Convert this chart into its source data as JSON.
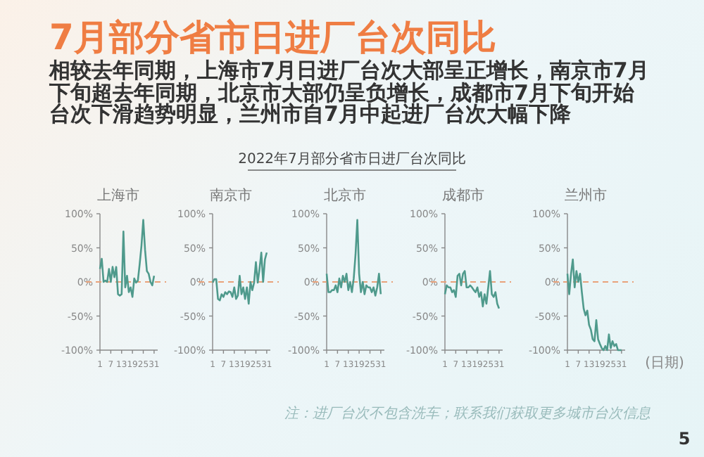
{
  "chart_data": [
    {
      "type": "line",
      "title": "上海市",
      "annotations": [
        "7月部分省市日进厂台次同比",
        "相较去年同期，上海市7月日进厂台次大部呈正增长，南京市7月下旬超去年同期，北京市大部仍呈负增长，成都市7月下旬开始台次下滑趋势明显，兰州市自7月中起进厂台次大幅下降",
        "2022年7月部分省市日进厂台次同比",
        "注：进厂台次不包含洗车；联系我们获取更多城市台次信息",
        "5"
      ],
      "x": [
        1,
        2,
        3,
        4,
        5,
        6,
        7,
        8,
        9,
        10,
        11,
        12,
        13,
        14,
        15,
        16,
        17,
        18,
        19,
        20,
        21,
        22,
        23,
        24,
        25,
        26,
        27,
        28,
        29,
        30,
        31
      ],
      "xlim": [
        1,
        33
      ],
      "xticks": [
        1,
        7,
        13,
        19,
        25,
        31
      ],
      "ylim": [
        -100,
        100
      ],
      "yticks": [
        {
          "value": -100,
          "label": "-100%"
        },
        {
          "value": -50,
          "label": "-50%"
        },
        {
          "value": 0,
          "label": "0%"
        },
        {
          "value": 50,
          "label": "50%"
        },
        {
          "value": 100,
          "label": "100%"
        }
      ],
      "ref_lines": [
        {
          "axis": "y",
          "value": 0,
          "color": "#e9a27a",
          "line_style": "dashed"
        }
      ],
      "series": [
        {
          "color": "#4f9a8c",
          "values": [
            19,
            34,
            0,
            2,
            0,
            19,
            0,
            22,
            7,
            22,
            -18,
            -20,
            -18,
            74,
            -8,
            9,
            -15,
            -8,
            -22,
            5,
            -1,
            2,
            26,
            53,
            91,
            47,
            16,
            12,
            0,
            -5,
            9
          ]
        }
      ]
    },
    {
      "type": "line",
      "title": "南京市",
      "x": [
        1,
        2,
        3,
        4,
        5,
        6,
        7,
        8,
        9,
        10,
        11,
        12,
        13,
        14,
        15,
        16,
        17,
        18,
        19,
        20,
        21,
        22,
        23,
        24,
        25,
        26,
        27,
        28,
        29,
        30,
        31
      ],
      "xlim": [
        1,
        33
      ],
      "xticks": [
        1,
        7,
        13,
        19,
        25,
        31
      ],
      "ylim": [
        -100,
        100
      ],
      "yticks": [
        {
          "value": -100,
          "label": "-100%"
        },
        {
          "value": -50,
          "label": "-50%"
        },
        {
          "value": 0,
          "label": "0%"
        },
        {
          "value": 50,
          "label": "50%"
        },
        {
          "value": 100,
          "label": "100%"
        }
      ],
      "ref_lines": [
        {
          "axis": "y",
          "value": 0,
          "color": "#e9a27a",
          "line_style": "dashed"
        }
      ],
      "series": [
        {
          "color": "#4f9a8c",
          "values": [
            -1,
            4,
            4,
            -25,
            -27,
            -18,
            -22,
            -15,
            -18,
            -14,
            -15,
            -22,
            -8,
            -25,
            -20,
            9,
            -18,
            -8,
            -25,
            -8,
            -32,
            0,
            -12,
            -1,
            29,
            -1,
            19,
            43,
            0,
            33,
            43
          ]
        }
      ]
    },
    {
      "type": "line",
      "title": "北京市",
      "x": [
        1,
        2,
        3,
        4,
        5,
        6,
        7,
        8,
        9,
        10,
        11,
        12,
        13,
        14,
        15,
        16,
        17,
        18,
        19,
        20,
        21,
        22,
        23,
        24,
        25,
        26,
        27,
        28,
        29,
        30,
        31
      ],
      "xlim": [
        1,
        33
      ],
      "xticks": [
        1,
        7,
        13,
        19,
        25,
        31
      ],
      "ylim": [
        -100,
        100
      ],
      "yticks": [
        {
          "value": -100,
          "label": "-100%"
        },
        {
          "value": -50,
          "label": "-50%"
        },
        {
          "value": 0,
          "label": "0%"
        },
        {
          "value": 50,
          "label": "50%"
        },
        {
          "value": 100,
          "label": "100%"
        }
      ],
      "ref_lines": [
        {
          "axis": "y",
          "value": 0,
          "color": "#e9a27a",
          "line_style": "dashed"
        }
      ],
      "series": [
        {
          "color": "#4f9a8c",
          "values": [
            12,
            -15,
            -15,
            -12,
            -12,
            -5,
            -15,
            5,
            -8,
            9,
            0,
            12,
            -12,
            0,
            -15,
            5,
            40,
            91,
            12,
            -15,
            0,
            -18,
            -5,
            -8,
            -8,
            -15,
            -8,
            -20,
            -8,
            12,
            -18
          ]
        }
      ]
    },
    {
      "type": "line",
      "title": "成都市",
      "x": [
        1,
        2,
        3,
        4,
        5,
        6,
        7,
        8,
        9,
        10,
        11,
        12,
        13,
        14,
        15,
        16,
        17,
        18,
        19,
        20,
        21,
        22,
        23,
        24,
        25,
        26,
        27,
        28,
        29,
        30,
        31
      ],
      "xlim": [
        1,
        33
      ],
      "xticks": [
        1,
        7,
        13,
        19,
        25,
        31
      ],
      "ylim": [
        -100,
        100
      ],
      "yticks": [
        {
          "value": -100,
          "label": "-100%"
        },
        {
          "value": -50,
          "label": "-50%"
        },
        {
          "value": 0,
          "label": "0%"
        },
        {
          "value": 50,
          "label": "50%"
        },
        {
          "value": 100,
          "label": "100%"
        }
      ],
      "ref_lines": [
        {
          "axis": "y",
          "value": 0,
          "color": "#e9a27a",
          "line_style": "dashed"
        }
      ],
      "series": [
        {
          "color": "#4f9a8c",
          "values": [
            -18,
            -5,
            -8,
            -8,
            -15,
            -12,
            -22,
            9,
            12,
            -5,
            12,
            16,
            -8,
            -8,
            -5,
            -8,
            -12,
            -15,
            -8,
            -22,
            -15,
            -36,
            -18,
            -32,
            -8,
            16,
            -18,
            -22,
            -15,
            -32,
            -39
          ]
        }
      ]
    },
    {
      "type": "line",
      "title": "兰州市",
      "xlabel": "(日期)",
      "x": [
        1,
        2,
        3,
        4,
        5,
        6,
        7,
        8,
        9,
        10,
        11,
        12,
        13,
        14,
        15,
        16,
        17,
        18,
        19,
        20,
        21,
        22,
        23,
        24,
        25,
        26,
        27,
        28,
        29,
        30,
        31
      ],
      "xlim": [
        1,
        33
      ],
      "xticks": [
        1,
        7,
        13,
        19,
        25,
        31
      ],
      "ylim": [
        -100,
        100
      ],
      "yticks": [
        {
          "value": -100,
          "label": "-100%"
        },
        {
          "value": -50,
          "label": "-50%"
        },
        {
          "value": 0,
          "label": "0%"
        },
        {
          "value": 50,
          "label": "50%"
        },
        {
          "value": 100,
          "label": "100%"
        }
      ],
      "ref_lines": [
        {
          "axis": "y",
          "value": 0,
          "color": "#e9a27a",
          "line_style": "dashed"
        }
      ],
      "series": [
        {
          "color": "#4f9a8c",
          "values": [
            12,
            -18,
            12,
            33,
            -8,
            16,
            0,
            12,
            -15,
            -39,
            -49,
            -42,
            -63,
            -70,
            -84,
            -87,
            -56,
            -84,
            -91,
            -97,
            -100,
            -94,
            -100,
            -77,
            -97,
            -87,
            -94,
            -91,
            -100,
            -100,
            -100
          ]
        }
      ]
    }
  ]
}
